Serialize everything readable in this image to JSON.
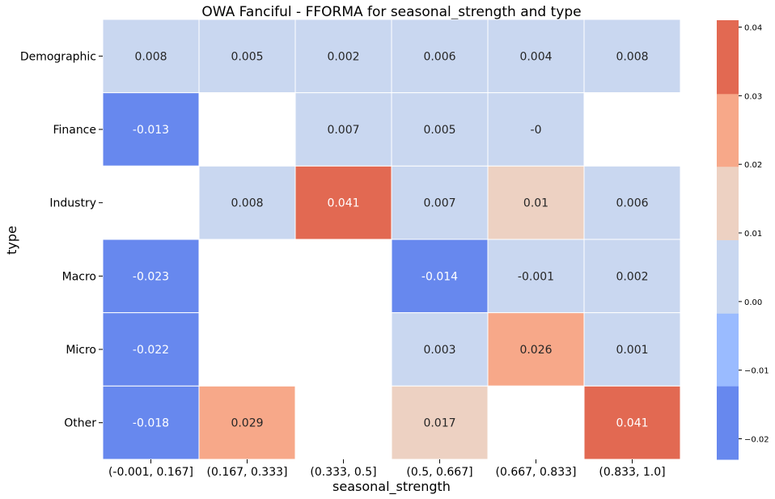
{
  "chart_data": {
    "type": "heatmap",
    "title": "OWA Fanciful - FFORMA for seasonal_strength and type",
    "xlabel": "seasonal_strength",
    "ylabel": "type",
    "x_categories": [
      "(-0.001, 0.167]",
      "(0.167, 0.333]",
      "(0.333, 0.5]",
      "(0.5, 0.667]",
      "(0.667, 0.833]",
      "(0.833, 1.0]"
    ],
    "y_categories": [
      "Demographic",
      "Finance",
      "Industry",
      "Macro",
      "Micro",
      "Other"
    ],
    "values": [
      [
        0.008,
        0.005,
        0.002,
        0.006,
        0.004,
        0.008
      ],
      [
        -0.013,
        null,
        0.007,
        0.005,
        -0.0,
        null
      ],
      [
        null,
        0.008,
        0.041,
        0.007,
        0.01,
        0.006
      ],
      [
        -0.023,
        null,
        null,
        -0.014,
        -0.001,
        0.002
      ],
      [
        -0.022,
        null,
        null,
        0.003,
        0.026,
        0.001
      ],
      [
        -0.018,
        0.029,
        null,
        0.017,
        null,
        0.041
      ]
    ],
    "value_labels": [
      [
        "0.008",
        "0.005",
        "0.002",
        "0.006",
        "0.004",
        "0.008"
      ],
      [
        "-0.013",
        "",
        "0.007",
        "0.005",
        "-0",
        ""
      ],
      [
        "",
        "0.008",
        "0.041",
        "0.007",
        "0.01",
        "0.006"
      ],
      [
        "-0.023",
        "",
        "",
        "-0.014",
        "-0.001",
        "0.002"
      ],
      [
        "-0.022",
        "",
        "",
        "0.003",
        "0.026",
        "0.001"
      ],
      [
        "-0.018",
        "0.029",
        "",
        "0.017",
        "",
        "0.041"
      ]
    ],
    "colorbar": {
      "range": [
        -0.023,
        0.041
      ],
      "ticks": [
        -0.02,
        -0.01,
        0.0,
        0.01,
        0.02,
        0.03,
        0.04
      ],
      "tick_labels": [
        "−0.02",
        "−0.01",
        "0.00",
        "0.01",
        "0.02",
        "0.03",
        "0.04"
      ],
      "bins": [
        {
          "from": -0.023,
          "to": -0.0123,
          "color": "#6788ee"
        },
        {
          "from": -0.0123,
          "to": -0.0017,
          "color": "#9abbff"
        },
        {
          "from": -0.0017,
          "to": 0.009,
          "color": "#c9d7f0"
        },
        {
          "from": 0.009,
          "to": 0.0197,
          "color": "#edd1c2"
        },
        {
          "from": 0.0197,
          "to": 0.0303,
          "color": "#f7a889"
        },
        {
          "from": 0.0303,
          "to": 0.041,
          "color": "#e26952"
        }
      ]
    },
    "colors": {
      "missing": "#ffffff",
      "grid": "#ffffff"
    }
  }
}
